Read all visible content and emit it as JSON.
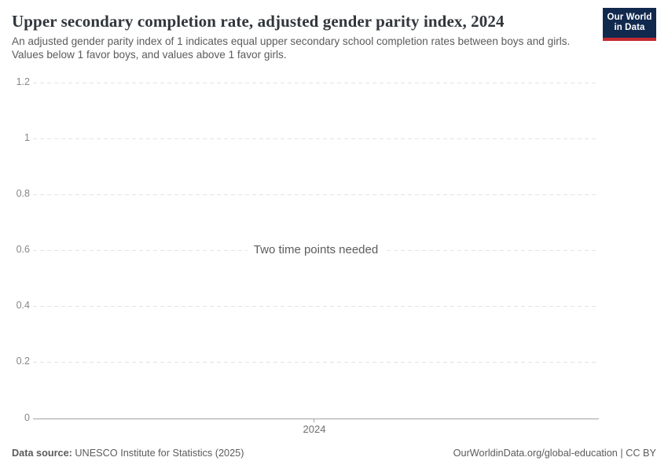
{
  "header": {
    "title": "Upper secondary completion rate, adjusted gender parity index, 2024",
    "subtitle": "An adjusted gender parity index of 1 indicates equal upper secondary school completion rates between boys and girls. Values below 1 favor boys, and values above 1 favor girls.",
    "logo": {
      "line1": "Our World",
      "line2": "in Data",
      "background_color": "#12294e",
      "bar_color": "#c32a31"
    }
  },
  "chart_data": {
    "type": "line",
    "title": "Upper secondary completion rate, adjusted gender parity index, 2024",
    "series": [],
    "no_data_message": "Two time points needed",
    "xlabel": "",
    "ylabel": "",
    "x_ticks": [
      "2024"
    ],
    "y_ticks": [
      1.2,
      1,
      0.8,
      0.6,
      0.4,
      0.2,
      0
    ],
    "y_tick_labels": [
      "1.2",
      "1",
      "0.8",
      "0.6",
      "0.4",
      "0.2",
      "0"
    ],
    "ylim": [
      0,
      1.2
    ],
    "grid": "horizontal-dashed",
    "legend_position": "none"
  },
  "footer": {
    "datasource_label": "Data source:",
    "datasource_value": "UNESCO Institute for Statistics (2025)",
    "attribution": "OurWorldinData.org/global-education | CC BY"
  }
}
